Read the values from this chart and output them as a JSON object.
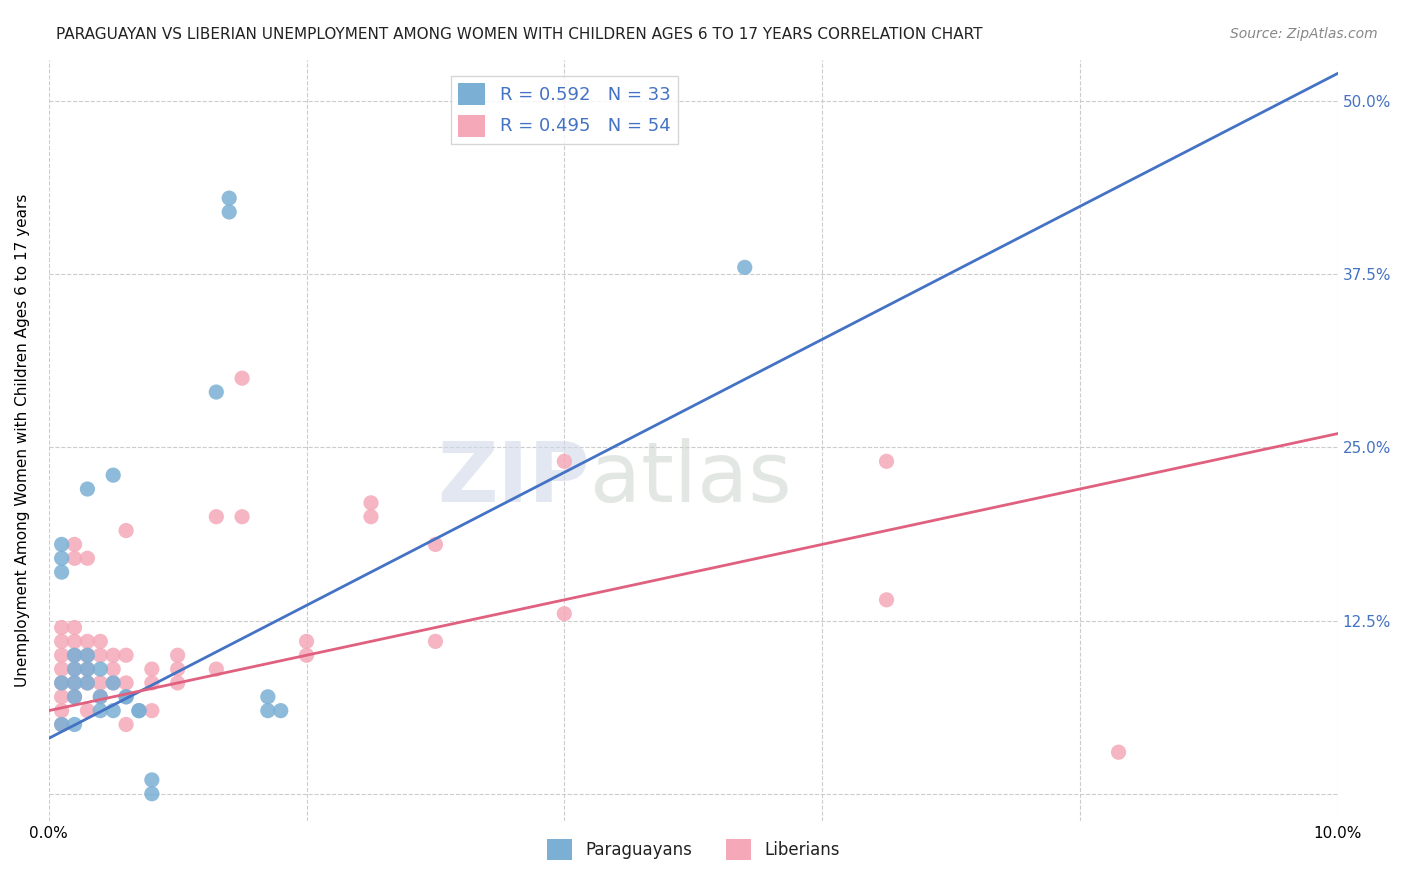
{
  "title": "PARAGUAYAN VS LIBERIAN UNEMPLOYMENT AMONG WOMEN WITH CHILDREN AGES 6 TO 17 YEARS CORRELATION CHART",
  "source": "Source: ZipAtlas.com",
  "ylabel": "Unemployment Among Women with Children Ages 6 to 17 years",
  "xlim": [
    0.0,
    0.1
  ],
  "ylim": [
    -0.02,
    0.53
  ],
  "x_ticks": [
    0.0,
    0.02,
    0.04,
    0.06,
    0.08,
    0.1
  ],
  "x_tick_labels": [
    "0.0%",
    "",
    "",
    "",
    "",
    "10.0%"
  ],
  "y_ticks": [
    0.0,
    0.125,
    0.25,
    0.375,
    0.5
  ],
  "y_tick_labels": [
    "",
    "12.5%",
    "25.0%",
    "37.5%",
    "50.0%"
  ],
  "paraguayan_R": 0.592,
  "paraguayan_N": 33,
  "liberian_R": 0.495,
  "liberian_N": 54,
  "blue_color": "#7bafd4",
  "pink_color": "#f4a8b8",
  "blue_line_color": "#4472c4",
  "pink_line_color": "#e06080",
  "blue_scatter": [
    [
      0.001,
      0.16
    ],
    [
      0.001,
      0.17
    ],
    [
      0.001,
      0.05
    ],
    [
      0.001,
      0.08
    ],
    [
      0.002,
      0.08
    ],
    [
      0.002,
      0.09
    ],
    [
      0.002,
      0.1
    ],
    [
      0.002,
      0.07
    ],
    [
      0.003,
      0.08
    ],
    [
      0.003,
      0.09
    ],
    [
      0.003,
      0.1
    ],
    [
      0.003,
      0.22
    ],
    [
      0.004,
      0.06
    ],
    [
      0.004,
      0.07
    ],
    [
      0.004,
      0.09
    ],
    [
      0.005,
      0.08
    ],
    [
      0.005,
      0.06
    ],
    [
      0.005,
      0.23
    ],
    [
      0.006,
      0.07
    ],
    [
      0.006,
      0.07
    ],
    [
      0.007,
      0.06
    ],
    [
      0.007,
      0.06
    ],
    [
      0.008,
      0.0
    ],
    [
      0.008,
      0.01
    ],
    [
      0.013,
      0.29
    ],
    [
      0.014,
      0.42
    ],
    [
      0.014,
      0.43
    ],
    [
      0.017,
      0.06
    ],
    [
      0.017,
      0.07
    ],
    [
      0.018,
      0.06
    ],
    [
      0.054,
      0.38
    ],
    [
      0.001,
      0.18
    ],
    [
      0.002,
      0.05
    ]
  ],
  "pink_scatter": [
    [
      0.001,
      0.05
    ],
    [
      0.001,
      0.06
    ],
    [
      0.001,
      0.07
    ],
    [
      0.001,
      0.08
    ],
    [
      0.001,
      0.09
    ],
    [
      0.001,
      0.1
    ],
    [
      0.001,
      0.11
    ],
    [
      0.001,
      0.12
    ],
    [
      0.002,
      0.07
    ],
    [
      0.002,
      0.08
    ],
    [
      0.002,
      0.09
    ],
    [
      0.002,
      0.1
    ],
    [
      0.002,
      0.11
    ],
    [
      0.002,
      0.12
    ],
    [
      0.002,
      0.17
    ],
    [
      0.002,
      0.18
    ],
    [
      0.003,
      0.06
    ],
    [
      0.003,
      0.08
    ],
    [
      0.003,
      0.09
    ],
    [
      0.003,
      0.1
    ],
    [
      0.003,
      0.11
    ],
    [
      0.003,
      0.17
    ],
    [
      0.004,
      0.07
    ],
    [
      0.004,
      0.08
    ],
    [
      0.004,
      0.1
    ],
    [
      0.004,
      0.11
    ],
    [
      0.005,
      0.08
    ],
    [
      0.005,
      0.09
    ],
    [
      0.005,
      0.1
    ],
    [
      0.006,
      0.05
    ],
    [
      0.006,
      0.08
    ],
    [
      0.006,
      0.1
    ],
    [
      0.006,
      0.19
    ],
    [
      0.008,
      0.09
    ],
    [
      0.008,
      0.08
    ],
    [
      0.008,
      0.06
    ],
    [
      0.01,
      0.08
    ],
    [
      0.01,
      0.09
    ],
    [
      0.01,
      0.1
    ],
    [
      0.013,
      0.09
    ],
    [
      0.013,
      0.2
    ],
    [
      0.015,
      0.2
    ],
    [
      0.015,
      0.3
    ],
    [
      0.02,
      0.1
    ],
    [
      0.02,
      0.11
    ],
    [
      0.025,
      0.2
    ],
    [
      0.025,
      0.21
    ],
    [
      0.03,
      0.18
    ],
    [
      0.03,
      0.11
    ],
    [
      0.04,
      0.24
    ],
    [
      0.04,
      0.13
    ],
    [
      0.065,
      0.24
    ],
    [
      0.065,
      0.14
    ],
    [
      0.083,
      0.03
    ]
  ],
  "blue_trendline": [
    [
      0.0,
      0.04
    ],
    [
      0.1,
      0.52
    ]
  ],
  "pink_trendline": [
    [
      0.0,
      0.06
    ],
    [
      0.1,
      0.26
    ]
  ],
  "watermark_zip": "ZIP",
  "watermark_atlas": "atlas",
  "background_color": "#ffffff",
  "grid_color": "#cccccc"
}
